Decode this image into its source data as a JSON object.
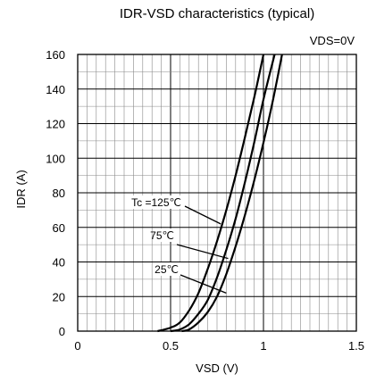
{
  "chart_data": {
    "type": "line",
    "title": "IDR-VSD characteristics (typical)",
    "subtitle": "VDS=0V",
    "xlabel": "VSD (V)",
    "ylabel": "IDR (A)",
    "xlim": [
      0,
      1.5
    ],
    "ylim": [
      0,
      160
    ],
    "xticks": [
      0,
      0.5,
      1,
      1.5
    ],
    "xtick_labels": [
      "0",
      "0.5",
      "1",
      "1.5"
    ],
    "yticks": [
      0,
      20,
      40,
      60,
      80,
      100,
      120,
      140,
      160
    ],
    "ytick_labels": [
      "0",
      "20",
      "40",
      "60",
      "80",
      "100",
      "120",
      "140",
      "160"
    ],
    "grid": true,
    "legend": "none",
    "series": [
      {
        "label": "Tc =125℃",
        "x": [
          0.43,
          0.5,
          0.55,
          0.6,
          0.65,
          0.7,
          0.75,
          0.8,
          0.85,
          0.9,
          0.95,
          1.0
        ],
        "y": [
          0,
          2,
          5,
          12,
          22,
          36,
          52,
          70,
          90,
          112,
          135,
          160
        ]
      },
      {
        "label": "75℃",
        "x": [
          0.5,
          0.55,
          0.6,
          0.65,
          0.7,
          0.75,
          0.8,
          0.85,
          0.9,
          0.95,
          1.0,
          1.06
        ],
        "y": [
          0,
          1,
          4,
          10,
          18,
          31,
          47,
          65,
          86,
          109,
          134,
          160
        ]
      },
      {
        "label": "25℃",
        "x": [
          0.56,
          0.6,
          0.65,
          0.7,
          0.75,
          0.8,
          0.85,
          0.9,
          0.95,
          1.0,
          1.05,
          1.1
        ],
        "y": [
          0,
          1,
          5,
          11,
          20,
          33,
          49,
          67,
          87,
          109,
          133,
          160
        ]
      }
    ],
    "annotations": [
      {
        "text": "Tc =125℃",
        "points_to": [
          0.77,
          62
        ]
      },
      {
        "text": "75℃",
        "points_to": [
          0.81,
          42
        ]
      },
      {
        "text": "25℃",
        "points_to": [
          0.8,
          22
        ]
      }
    ]
  }
}
